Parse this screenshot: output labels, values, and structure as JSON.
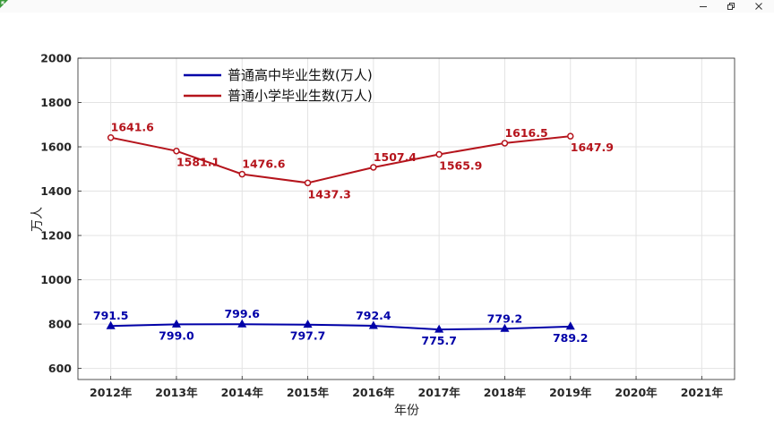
{
  "window": {
    "minimize_icon": "minimize-icon",
    "restore_icon": "restore-icon",
    "close_icon": "close-icon"
  },
  "chart_data": {
    "type": "line",
    "categories": [
      "2012年",
      "2013年",
      "2014年",
      "2015年",
      "2016年",
      "2017年",
      "2018年",
      "2019年",
      "2020年",
      "2021年"
    ],
    "series": [
      {
        "name": "普通高中毕业生数(万人)",
        "color": "#0000a8",
        "marker": "triangle",
        "values": [
          791.5,
          799.0,
          799.6,
          797.7,
          792.4,
          775.7,
          779.2,
          789.2,
          null,
          null
        ],
        "labels": [
          "791.5",
          "799.0",
          "799.6",
          "797.7",
          "792.4",
          "775.7",
          "779.2",
          "789.2",
          null,
          null
        ],
        "label_pos": [
          "above",
          "below",
          "above",
          "below",
          "above",
          "below",
          "above",
          "below"
        ]
      },
      {
        "name": "普通小学毕业生数(万人)",
        "color": "#b5141c",
        "marker": "circle",
        "values": [
          1641.6,
          1581.1,
          1476.6,
          1437.3,
          1507.4,
          1565.9,
          1616.5,
          1647.9,
          null,
          null
        ],
        "labels": [
          "1641.6",
          "1581.1",
          "1476.6",
          "1437.3",
          "1507.4",
          "1565.9",
          "1616.5",
          "1647.9",
          null,
          null
        ],
        "label_pos": [
          "above",
          "below",
          "above",
          "below",
          "above",
          "below",
          "above",
          "below"
        ]
      }
    ],
    "xlabel": "年份",
    "ylabel": "万人",
    "ylim": [
      550,
      2000
    ],
    "yticks": [
      600,
      800,
      1000,
      1200,
      1400,
      1600,
      1800,
      2000
    ],
    "grid": true,
    "legend_position": "top-left"
  }
}
